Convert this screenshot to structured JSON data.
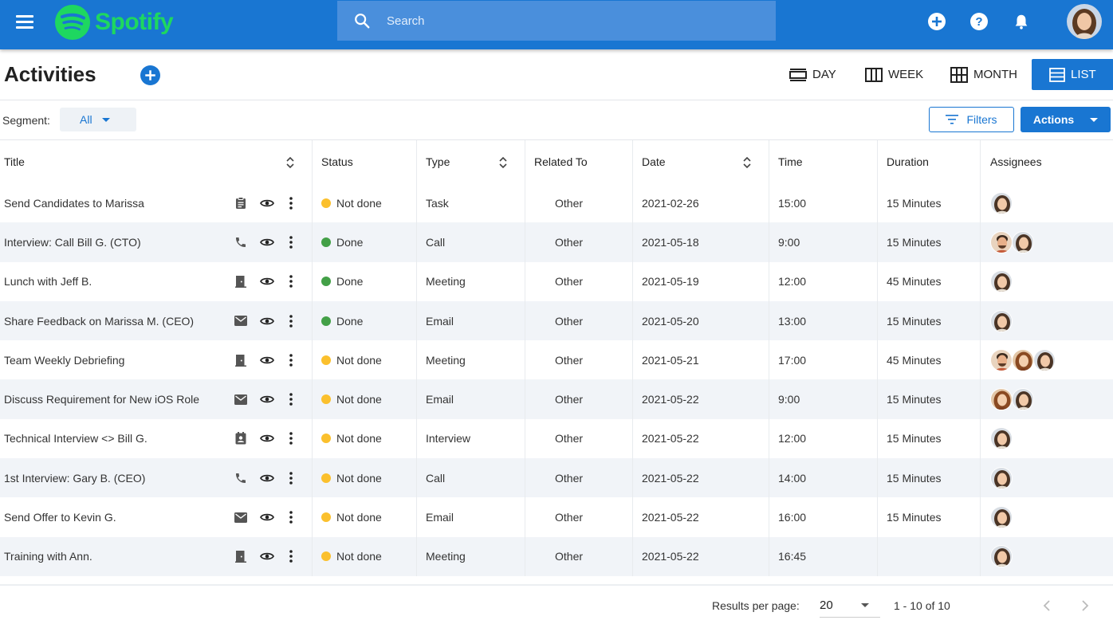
{
  "topbar": {
    "logo_text": "Spotify",
    "brand_color": "#1ed760",
    "bar_color": "#1976d2",
    "search_placeholder": "Search"
  },
  "header": {
    "title": "Activities",
    "views": {
      "day": "DAY",
      "week": "WEEK",
      "month": "MONTH",
      "list": "LIST"
    },
    "active_view": "LIST"
  },
  "toolbar": {
    "segment_label": "Segment:",
    "segment_value": "All",
    "filters_label": "Filters",
    "actions_label": "Actions"
  },
  "table": {
    "columns": {
      "title": "Title",
      "status": "Status",
      "type": "Type",
      "related": "Related To",
      "date": "Date",
      "time": "Time",
      "duration": "Duration",
      "assignees": "Assignees"
    },
    "status_colors": {
      "Done": "#43a047",
      "Not done": "#fbc02d"
    },
    "rows": [
      {
        "title": "Send Candidates to Marissa",
        "icon": "clipboard-icon",
        "status": "Not done",
        "type": "Task",
        "related": "Other",
        "date": "2021-02-26",
        "time": "15:00",
        "duration": "15 Minutes",
        "assignees": [
          "woman"
        ]
      },
      {
        "title": "Interview: Call Bill G. (CTO)",
        "icon": "phone-icon",
        "status": "Done",
        "type": "Call",
        "related": "Other",
        "date": "2021-05-18",
        "time": "9:00",
        "duration": "15 Minutes",
        "assignees": [
          "man",
          "woman"
        ]
      },
      {
        "title": "Lunch with Jeff B.",
        "icon": "meeting-door-icon",
        "status": "Done",
        "type": "Meeting",
        "related": "Other",
        "date": "2021-05-19",
        "time": "12:00",
        "duration": "45 Minutes",
        "assignees": [
          "woman"
        ]
      },
      {
        "title": "Share Feedback on Marissa M. (CEO)",
        "icon": "email-icon",
        "status": "Done",
        "type": "Email",
        "related": "Other",
        "date": "2021-05-20",
        "time": "13:00",
        "duration": "15 Minutes",
        "assignees": [
          "woman"
        ]
      },
      {
        "title": "Team Weekly Debriefing",
        "icon": "meeting-door-icon",
        "status": "Not done",
        "type": "Meeting",
        "related": "Other",
        "date": "2021-05-21",
        "time": "17:00",
        "duration": "45 Minutes",
        "assignees": [
          "man",
          "woman2",
          "woman"
        ]
      },
      {
        "title": "Discuss Requirement for New iOS Role",
        "icon": "email-icon",
        "status": "Not done",
        "type": "Email",
        "related": "Other",
        "date": "2021-05-22",
        "time": "9:00",
        "duration": "15 Minutes",
        "assignees": [
          "woman2",
          "woman"
        ]
      },
      {
        "title": "Technical Interview <> Bill G.",
        "icon": "contact-card-icon",
        "status": "Not done",
        "type": "Interview",
        "related": "Other",
        "date": "2021-05-22",
        "time": "12:00",
        "duration": "15 Minutes",
        "assignees": [
          "woman"
        ]
      },
      {
        "title": "1st Interview: Gary B. (CEO)",
        "icon": "phone-icon",
        "status": "Not done",
        "type": "Call",
        "related": "Other",
        "date": "2021-05-22",
        "time": "14:00",
        "duration": "15 Minutes",
        "assignees": [
          "woman"
        ]
      },
      {
        "title": "Send Offer to Kevin G.",
        "icon": "email-icon",
        "status": "Not done",
        "type": "Email",
        "related": "Other",
        "date": "2021-05-22",
        "time": "16:00",
        "duration": "15 Minutes",
        "assignees": [
          "woman"
        ]
      },
      {
        "title": "Training with Ann.",
        "icon": "meeting-door-icon",
        "status": "Not done",
        "type": "Meeting",
        "related": "Other",
        "date": "2021-05-22",
        "time": "16:45",
        "duration": "",
        "assignees": [
          "woman"
        ]
      }
    ]
  },
  "footer": {
    "rpp_label": "Results per page:",
    "rpp_value": "20",
    "range": "1 - 10 of 10"
  }
}
